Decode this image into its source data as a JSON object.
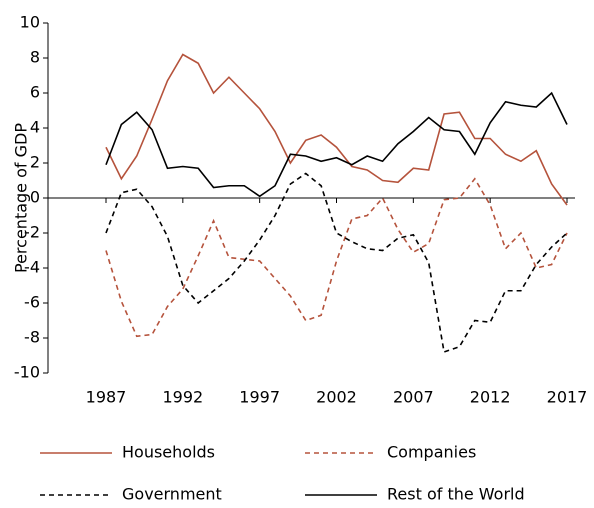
{
  "chart_data": {
    "type": "line",
    "y_label": "Percentage of GDP",
    "x": [
      1987,
      1988,
      1989,
      1990,
      1991,
      1992,
      1993,
      1994,
      1995,
      1996,
      1997,
      1998,
      1999,
      2000,
      2001,
      2002,
      2003,
      2004,
      2005,
      2006,
      2007,
      2008,
      2009,
      2010,
      2011,
      2012,
      2013,
      2014,
      2015,
      2016,
      2017
    ],
    "xlim": [
      1987,
      2017
    ],
    "xticks": [
      1987,
      1992,
      1997,
      2002,
      2007,
      2012,
      2017
    ],
    "ylim": [
      -10,
      10
    ],
    "yticks": [
      -10,
      -8,
      -6,
      -4,
      -2,
      0,
      2,
      4,
      6,
      8,
      10
    ],
    "series": [
      {
        "name": "Households",
        "color": "#b5533c",
        "dash": "solid",
        "values": [
          2.9,
          1.1,
          2.4,
          4.5,
          6.7,
          8.2,
          7.7,
          6.0,
          6.9,
          6.0,
          5.1,
          3.8,
          2.0,
          3.3,
          3.6,
          2.9,
          1.8,
          1.6,
          1.0,
          0.9,
          1.7,
          1.6,
          4.8,
          4.9,
          3.4,
          3.4,
          2.5,
          2.1,
          2.7,
          0.8,
          -0.4
        ]
      },
      {
        "name": "Companies",
        "color": "#b5533c",
        "dash": "dashed",
        "values": [
          -3.0,
          -5.9,
          -7.9,
          -7.8,
          -6.2,
          -5.2,
          -3.3,
          -1.3,
          -3.4,
          -3.5,
          -3.6,
          -4.6,
          -5.6,
          -7.0,
          -6.7,
          -3.6,
          -1.2,
          -1.0,
          0.0,
          -1.8,
          -3.1,
          -2.6,
          -0.1,
          0.0,
          1.1,
          -0.4,
          -2.9,
          -2.0,
          -4.0,
          -3.8,
          -2.0
        ]
      },
      {
        "name": "Government",
        "color": "#000000",
        "dash": "dashed",
        "values": [
          -2.0,
          0.3,
          0.5,
          -0.5,
          -2.2,
          -5.0,
          -6.0,
          -5.3,
          -4.6,
          -3.6,
          -2.4,
          -1.0,
          0.8,
          1.4,
          0.7,
          -2.0,
          -2.5,
          -2.9,
          -3.0,
          -2.3,
          -2.1,
          -3.7,
          -8.8,
          -8.5,
          -7.0,
          -7.1,
          -5.3,
          -5.3,
          -3.8,
          -2.8,
          -2.0
        ]
      },
      {
        "name": "Rest of the World",
        "color": "#000000",
        "dash": "solid",
        "values": [
          1.9,
          4.2,
          4.9,
          3.9,
          1.7,
          1.8,
          1.7,
          0.6,
          0.7,
          0.7,
          0.1,
          0.7,
          2.5,
          2.4,
          2.1,
          2.3,
          1.9,
          2.4,
          2.1,
          3.1,
          3.8,
          4.6,
          3.9,
          3.8,
          2.5,
          4.3,
          5.5,
          5.3,
          5.2,
          6.0,
          4.2
        ]
      }
    ]
  }
}
